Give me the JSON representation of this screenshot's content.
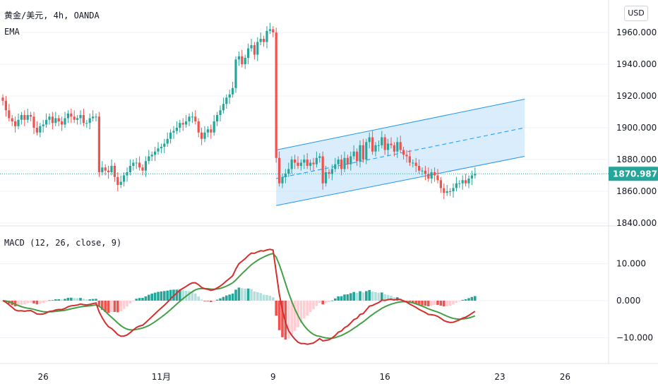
{
  "legend": {
    "title": "黄金/美元, 4h, OANDA",
    "ema": "EMA",
    "macd": "MACD (12, 26, close, 9)"
  },
  "currency_button": "USD",
  "colors": {
    "bull": "#26a69a",
    "bear": "#ef5350",
    "macd_line": "#d32f2f",
    "signal_line": "#43a047",
    "hist_pos_strong": "#26a69a",
    "hist_pos_weak": "#b2dfdb",
    "hist_neg_strong": "#ef5350",
    "hist_neg_weak": "#ffcdd2",
    "channel_fill": "#bbdefb",
    "channel_line": "#2196f3",
    "last_price_bg": "#26a69a"
  },
  "chart_data": [
    {
      "type": "candlestick",
      "title": "黄金/美元, 4h, OANDA",
      "y_ticks": [
        "1840.000",
        "1860.000",
        "1880.000",
        "1900.000",
        "1920.000",
        "1940.000",
        "1960.000"
      ],
      "ylim": [
        1840,
        1966
      ],
      "x_ticks": [
        "26",
        "11月",
        "9",
        "16",
        "23",
        "26"
      ],
      "last_price": "1870.987",
      "close": [
        1917,
        1911,
        1906,
        1904,
        1901,
        1905,
        1908,
        1905,
        1908,
        1907,
        1900,
        1897,
        1901,
        1902,
        1905,
        1907,
        1903,
        1906,
        1904,
        1902,
        1906,
        1909,
        1907,
        1905,
        1906,
        1908,
        1903,
        1903,
        1906,
        1907,
        1907,
        1872,
        1875,
        1873,
        1872,
        1876,
        1869,
        1864,
        1866,
        1870,
        1872,
        1876,
        1878,
        1878,
        1875,
        1873,
        1879,
        1882,
        1883,
        1885,
        1887,
        1888,
        1890,
        1893,
        1897,
        1898,
        1900,
        1903,
        1902,
        1904,
        1907,
        1907,
        1904,
        1897,
        1893,
        1897,
        1899,
        1897,
        1904,
        1908,
        1911,
        1915,
        1919,
        1921,
        1925,
        1943,
        1945,
        1940,
        1944,
        1950,
        1952,
        1946,
        1954,
        1956,
        1954,
        1961,
        1962,
        1960,
        1881,
        1865,
        1869,
        1871,
        1874,
        1880,
        1878,
        1876,
        1878,
        1880,
        1876,
        1878,
        1877,
        1881,
        1882,
        1865,
        1872,
        1871,
        1874,
        1877,
        1880,
        1874,
        1881,
        1877,
        1882,
        1885,
        1879,
        1889,
        1880,
        1891,
        1894,
        1885,
        1889,
        1889,
        1894,
        1886,
        1890,
        1889,
        1885,
        1891,
        1886,
        1883,
        1882,
        1878,
        1878,
        1876,
        1873,
        1873,
        1871,
        1868,
        1872,
        1870,
        1867,
        1862,
        1859,
        1860,
        1860,
        1862,
        1865,
        1865,
        1867,
        1865,
        1868,
        1870,
        1871
      ],
      "ema": [],
      "channel": {
        "start_index": 88,
        "end_index": 168,
        "lower": [
          1851,
          1882
        ],
        "mid": [
          1868,
          1900
        ],
        "upper": [
          1886,
          1918
        ]
      }
    },
    {
      "type": "bar+line",
      "title": "MACD (12, 26, close, 9)",
      "y_ticks": [
        "10.000",
        "0.000",
        "-10.000"
      ],
      "ylim": [
        -16,
        15
      ],
      "series_names": [
        "MACD",
        "Signal",
        "Histogram"
      ]
    }
  ]
}
